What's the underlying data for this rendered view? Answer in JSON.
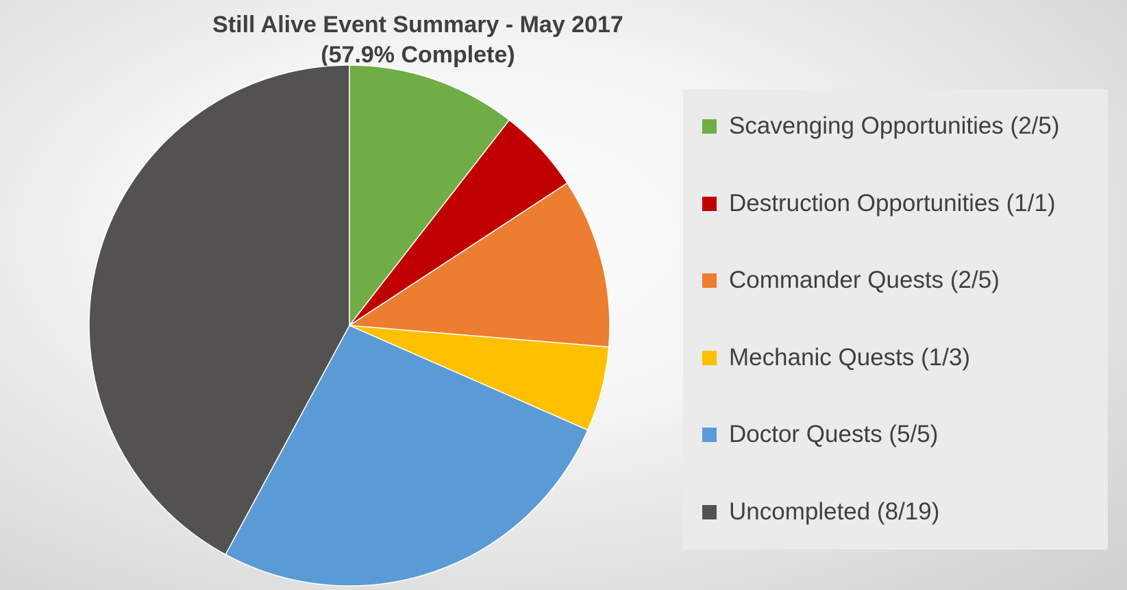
{
  "chart_data": {
    "type": "pie",
    "title": "Still Alive Event Summary - May 2017",
    "subtitle": "(57.9% Complete)",
    "legend_position": "right",
    "slices": [
      {
        "label": "Scavenging Opportunities (2/5)",
        "value": 2,
        "color": "#70AD47"
      },
      {
        "label": "Destruction Opportunities (1/1)",
        "value": 1,
        "color": "#C00000"
      },
      {
        "label": "Commander Quests (2/5)",
        "value": 2,
        "color": "#ED7D31"
      },
      {
        "label": "Mechanic Quests (1/3)",
        "value": 1,
        "color": "#FFC000"
      },
      {
        "label": "Doctor Quests (5/5)",
        "value": 5,
        "color": "#5B9BD5"
      },
      {
        "label": "Uncompleted (8/19)",
        "value": 8,
        "color": "#545151"
      }
    ]
  }
}
